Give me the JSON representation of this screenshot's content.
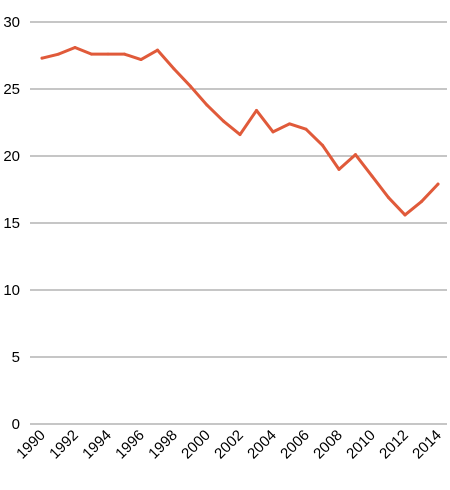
{
  "chart_data": {
    "type": "line",
    "title": "",
    "xlabel": "",
    "ylabel": "",
    "x": [
      1990,
      1991,
      1992,
      1993,
      1994,
      1995,
      1996,
      1997,
      1998,
      1999,
      2000,
      2001,
      2002,
      2003,
      2004,
      2005,
      2006,
      2007,
      2008,
      2009,
      2010,
      2011,
      2012,
      2013,
      2014
    ],
    "x_tick_labels": [
      "1990",
      "1992",
      "1994",
      "1996",
      "1998",
      "2000",
      "2002",
      "2004",
      "2006",
      "2008",
      "2010",
      "2012",
      "2014"
    ],
    "x_tick_values": [
      1990,
      1992,
      1994,
      1996,
      1998,
      2000,
      2002,
      2004,
      2006,
      2008,
      2010,
      2012,
      2014
    ],
    "y_ticks": [
      0,
      5,
      10,
      15,
      20,
      25,
      30
    ],
    "y_tick_labels": [
      "0",
      "5",
      "10",
      "15",
      "20",
      "25",
      "30"
    ],
    "ylim": [
      0,
      30
    ],
    "xlim": [
      1990,
      2014
    ],
    "grid": "horizontal",
    "legend": "none",
    "series": [
      {
        "color": "#e05a3a",
        "values": [
          27.3,
          27.6,
          28.1,
          27.6,
          27.6,
          27.6,
          27.2,
          27.9,
          26.5,
          25.2,
          23.8,
          22.6,
          21.6,
          23.4,
          21.8,
          22.4,
          22.0,
          20.8,
          19.0,
          20.1,
          18.5,
          16.9,
          15.6,
          16.6,
          17.9
        ]
      }
    ]
  }
}
